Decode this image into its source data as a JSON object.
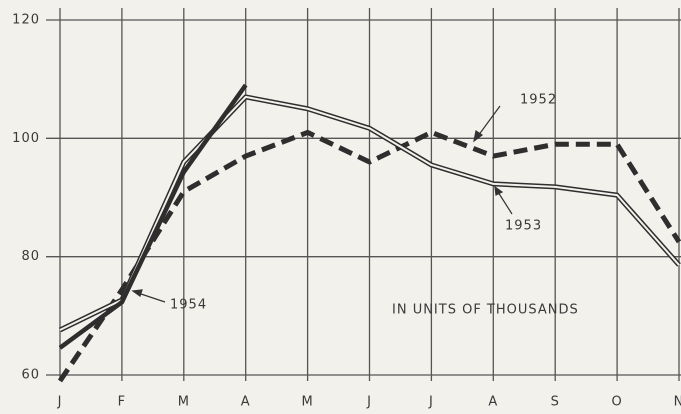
{
  "chart_data": {
    "type": "line",
    "categories": [
      "J",
      "F",
      "M",
      "A",
      "M",
      "J",
      "J",
      "A",
      "S",
      "O",
      "N"
    ],
    "series": [
      {
        "name": "1952",
        "color": "#2e2e2e",
        "line_style": "dashed",
        "values": [
          59,
          74.4,
          91,
          97,
          101,
          96,
          101,
          97,
          99,
          99,
          82.5
        ]
      },
      {
        "name": "1953",
        "color": "#2e2e2e",
        "line_style": "double",
        "values": [
          67.6,
          72.7,
          96,
          107,
          105,
          101.7,
          95.5,
          92.3,
          91.8,
          90.4,
          78.6
        ]
      },
      {
        "name": "1954",
        "color": "#2e2e2e",
        "line_style": "solid",
        "values": [
          64.6,
          72.3,
          94.3,
          109,
          null,
          null,
          null,
          null,
          null,
          null,
          null
        ]
      }
    ],
    "annotations": [
      "IN UNITS OF THOUSANDS"
    ],
    "ylim": [
      60,
      120
    ],
    "yticks": [
      60,
      80,
      100,
      120
    ],
    "grid": true
  }
}
